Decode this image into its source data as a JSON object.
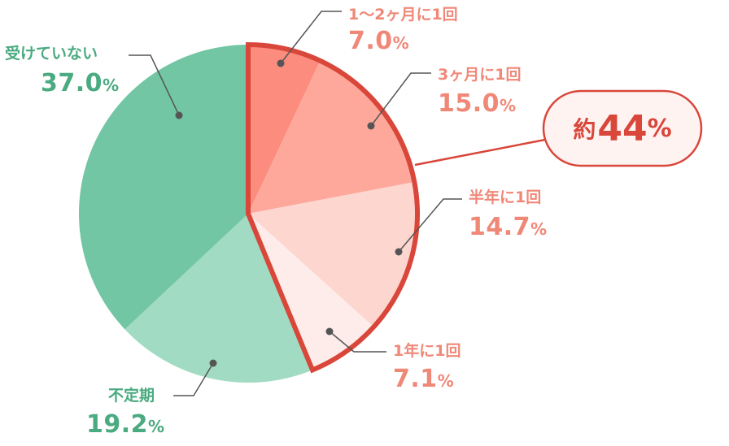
{
  "chart_data": {
    "type": "pie",
    "start": "12 o'clock",
    "direction": "clockwise",
    "slices": [
      {
        "label": "1〜2ヶ月に1回",
        "value": 7.0,
        "display": "7.0",
        "color": "#fb8c7e"
      },
      {
        "label": "3ヶ月に1回",
        "value": 15.0,
        "display": "15.0",
        "color": "#fda89b"
      },
      {
        "label": "半年に1回",
        "value": 14.7,
        "display": "14.7",
        "color": "#fdd6d0"
      },
      {
        "label": "1年に1回",
        "value": 7.1,
        "display": "7.1",
        "color": "#feecea"
      },
      {
        "label": "不定期",
        "value": 19.2,
        "display": "19.2",
        "color": "#a2dbc3"
      },
      {
        "label": "受けていない",
        "value": 37.0,
        "display": "37.0",
        "color": "#72c6a3"
      }
    ],
    "unit": "%",
    "highlight": {
      "slices": [
        0,
        1,
        2,
        3
      ],
      "prefix": "約",
      "value": "44",
      "unit": "%",
      "border_color": "#d9463a"
    },
    "label_colors": {
      "pink": "#f08878",
      "green": "#4aaa80"
    }
  }
}
